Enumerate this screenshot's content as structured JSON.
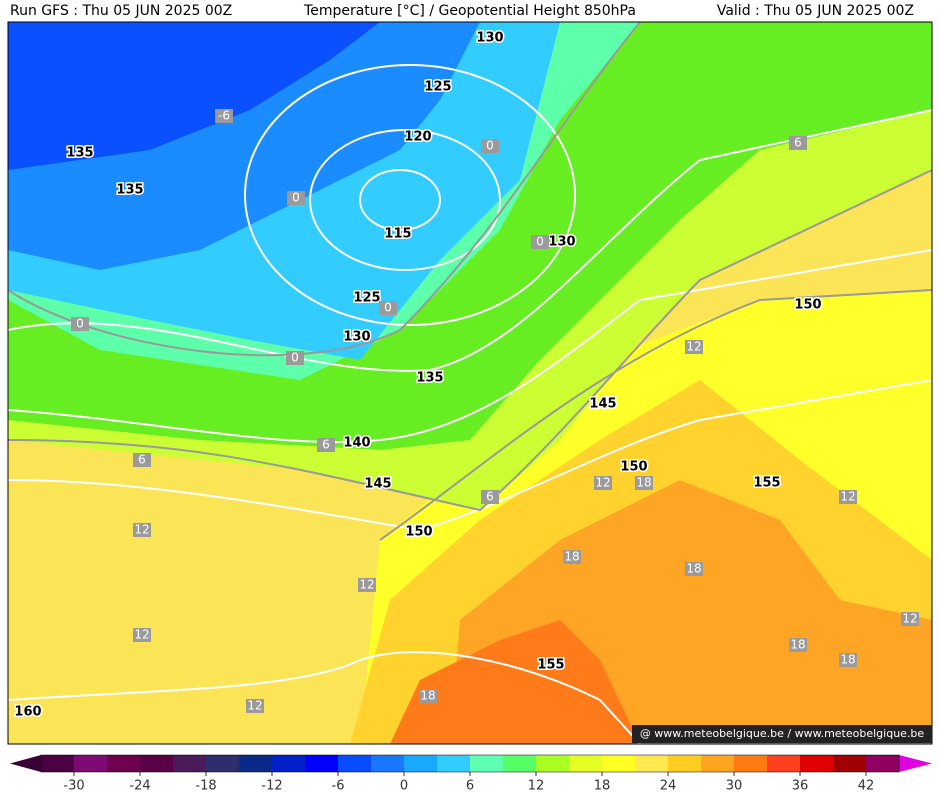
{
  "header": {
    "run": "Run GFS : Thu 05 JUN 2025 00Z",
    "title": "Temperature [°C] / Geopotential Height 850hPa",
    "valid": "Valid : Thu 05 JUN 2025 00Z"
  },
  "map": {
    "height_labels": [
      130,
      125,
      120,
      115,
      130,
      125,
      130,
      135,
      135,
      135,
      140,
      145,
      145,
      150,
      150,
      150,
      155,
      155,
      160
    ],
    "temperature_labels": [
      -6,
      0,
      0,
      0,
      0,
      0,
      0,
      6,
      12,
      6,
      6,
      6,
      12,
      18,
      12,
      12,
      18,
      12,
      18,
      12,
      12,
      18,
      18,
      18,
      12
    ]
  },
  "watermark": "@ www.meteobelgique.be / www.meteobelgique.be",
  "colorbar": {
    "lim": [
      -33,
      45
    ],
    "ticks": [
      -30,
      -24,
      -18,
      -12,
      -6,
      0,
      6,
      12,
      18,
      24,
      30,
      36,
      42
    ],
    "colors": [
      "#4b0045",
      "#7d0a72",
      "#6e0050",
      "#5a0046",
      "#4b1a5a",
      "#2e2e6e",
      "#0a2a8a",
      "#0020c8",
      "#0000ff",
      "#0a4cff",
      "#1a78ff",
      "#1aa8ff",
      "#33ccff",
      "#5effb0",
      "#55ff66",
      "#aaff22",
      "#e6ff22",
      "#ffff22",
      "#ffe850",
      "#ffcc22",
      "#ffa520",
      "#ff7a10",
      "#ff4020",
      "#e00000",
      "#a00000",
      "#900060"
    ]
  }
}
